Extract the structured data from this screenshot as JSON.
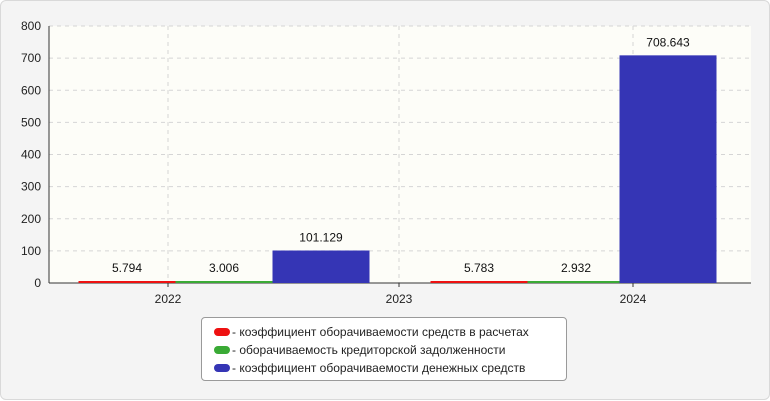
{
  "chart_data": {
    "type": "bar",
    "categories": [
      "2022",
      "2023",
      "2024"
    ],
    "ylim": [
      0,
      800
    ],
    "yticks": [
      "0",
      "100",
      "200",
      "300",
      "400",
      "500",
      "600",
      "700",
      "800"
    ],
    "grid": true,
    "legend_position": "bottom-center",
    "series": [
      {
        "name": "- коэффициент оборачиваемости средств в расчетах",
        "color": "#ee1111",
        "values": [
          5.794,
          null,
          5.783
        ],
        "labels": [
          "5.794",
          "",
          "5.783"
        ]
      },
      {
        "name": "- оборачиваемость кредиторской задолженности",
        "color": "#3aaa35",
        "values": [
          3.006,
          null,
          2.932
        ],
        "labels": [
          "3.006",
          "",
          "2.932"
        ]
      },
      {
        "name": "- коэффициент оборачиваемости денежных средств",
        "color": "#3535b5",
        "values": [
          101.129,
          null,
          708.643
        ],
        "labels": [
          "101.129",
          "",
          "708.643"
        ]
      }
    ]
  }
}
